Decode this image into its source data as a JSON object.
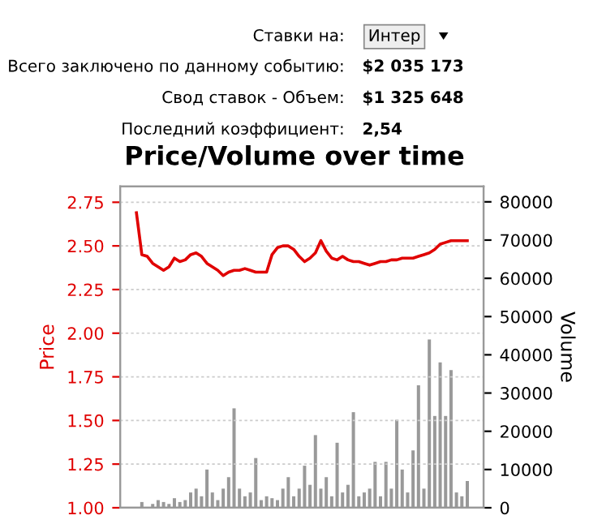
{
  "chart_data": {
    "type": "line",
    "title": "Price/Volume over time",
    "ylabel": "Price",
    "y2label": "Volume",
    "annotations": [
      "Ставки на:",
      "Интер",
      "Всего заключено по данному событию:",
      "$2 035 173",
      "Свод ставок - Объем:",
      "$1 325 648",
      "Последний коэффициент:",
      "2,54"
    ],
    "categories": [
      null,
      null,
      null,
      null,
      null,
      null,
      null,
      null,
      null,
      null,
      null,
      null,
      null,
      null,
      null,
      null,
      null,
      null,
      null,
      null,
      null,
      null,
      null,
      null,
      null,
      null,
      null,
      null,
      null,
      null,
      null,
      null,
      null,
      null,
      null,
      null,
      null,
      null,
      null,
      null,
      null,
      null,
      null,
      null,
      null,
      null,
      null,
      null,
      null,
      null,
      null,
      null,
      null,
      null,
      null,
      null,
      null,
      null,
      null,
      null,
      null,
      null
    ],
    "series": [
      {
        "type": "bar",
        "axis": "y2",
        "color": "#999999",
        "values": [
          null,
          1500,
          null,
          1000,
          2000,
          1500,
          1000,
          2500,
          1500,
          2000,
          4000,
          5000,
          3000,
          10000,
          4000,
          2000,
          5000,
          8000,
          26000,
          5000,
          3000,
          4000,
          13000,
          2000,
          3000,
          2500,
          2000,
          5000,
          8000,
          3000,
          5000,
          11000,
          6000,
          19000,
          5000,
          8000,
          3000,
          17000,
          4000,
          6000,
          25000,
          3000,
          4000,
          5000,
          12000,
          3000,
          12000,
          5000,
          23000,
          10000,
          4000,
          15000,
          32000,
          5000,
          44000,
          24000,
          38000,
          24000,
          36000,
          4000,
          3000,
          7000
        ]
      },
      {
        "color": "#e00000",
        "values": [
          2.69,
          2.45,
          2.44,
          2.4,
          2.38,
          2.36,
          2.38,
          2.43,
          2.41,
          2.42,
          2.45,
          2.46,
          2.44,
          2.4,
          2.38,
          2.36,
          2.33,
          2.35,
          2.36,
          2.36,
          2.37,
          2.36,
          2.35,
          2.35,
          2.35,
          2.45,
          2.49,
          2.5,
          2.5,
          2.48,
          2.44,
          2.41,
          2.43,
          2.46,
          2.53,
          2.47,
          2.43,
          2.42,
          2.44,
          2.42,
          2.41,
          2.41,
          2.4,
          2.39,
          2.4,
          2.41,
          2.41,
          2.42,
          2.42,
          2.43,
          2.43,
          2.43,
          2.44,
          2.45,
          2.46,
          2.48,
          2.51,
          2.52,
          2.53,
          2.53,
          2.53,
          2.53
        ]
      }
    ],
    "ylim": [
      1.0,
      2.84
    ],
    "yticks": [
      {
        "value": 1.0,
        "label": "1.00"
      },
      {
        "value": 1.25,
        "label": "1.25"
      },
      {
        "value": 1.5,
        "label": "1.50"
      },
      {
        "value": 1.75,
        "label": "1.75"
      },
      {
        "value": 2.0,
        "label": "2.00"
      },
      {
        "value": 2.25,
        "label": "2.25"
      },
      {
        "value": 2.5,
        "label": "2.50"
      },
      {
        "value": 2.75,
        "label": "2.75"
      }
    ],
    "y2lim": [
      0,
      84000
    ],
    "y2ticks": [
      0,
      10000,
      20000,
      30000,
      40000,
      50000,
      60000,
      70000,
      80000
    ],
    "tick_labels": "y",
    "grid": "y",
    "line_style": "solid",
    "marker": "none",
    "legend": false
  }
}
